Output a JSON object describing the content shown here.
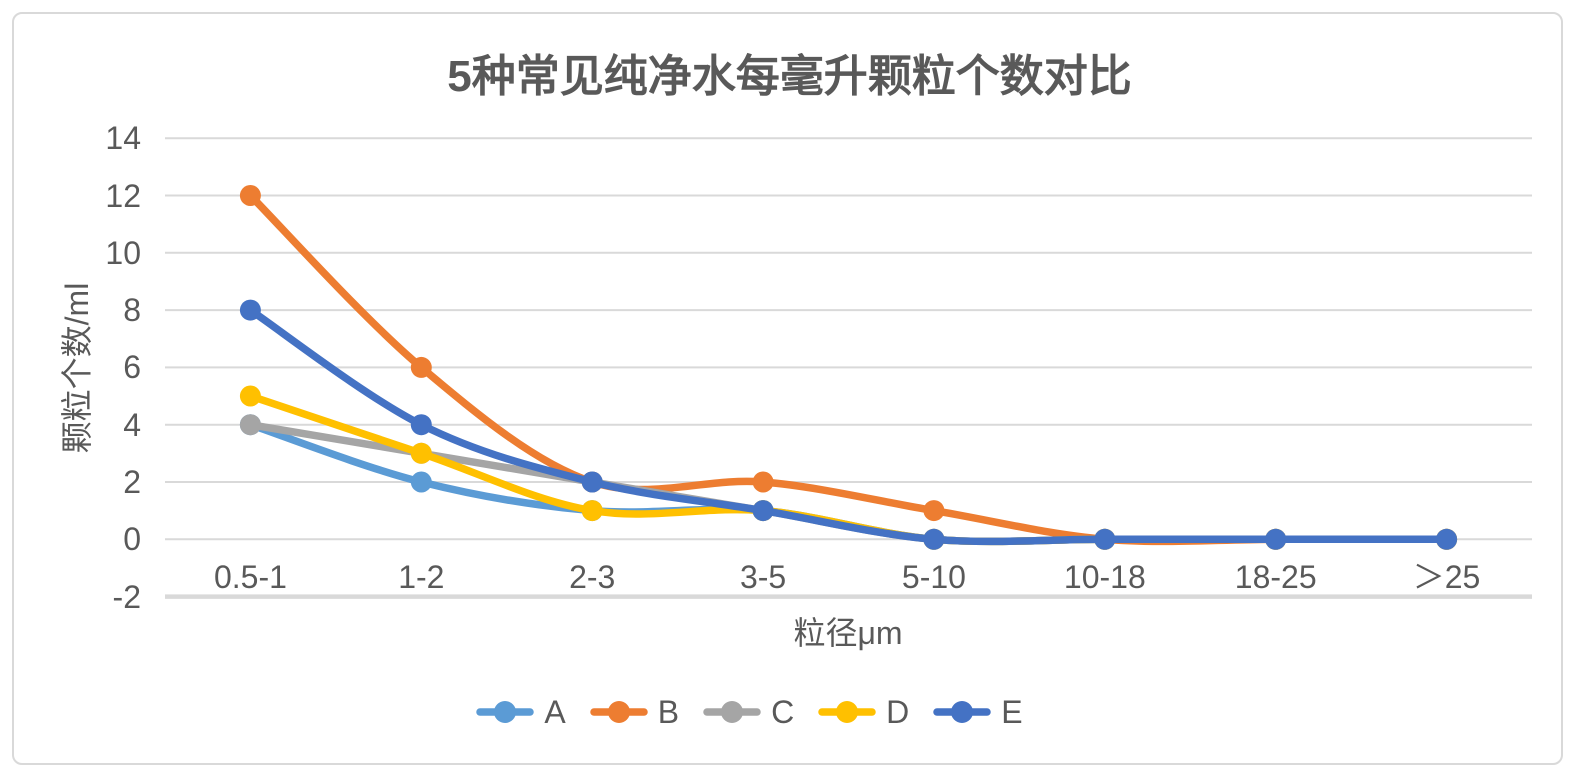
{
  "chart_data": {
    "type": "line",
    "title": "5种常见纯净水每毫升颗粒个数对比",
    "xlabel": "粒径μm",
    "ylabel": "颗粒个数/ml",
    "categories": [
      "0.5-1",
      "1-2",
      "2-3",
      "3-5",
      "5-10",
      "10-18",
      "18-25",
      "＞25"
    ],
    "series": [
      {
        "name": "A",
        "color": "#5B9BD5",
        "values": [
          4,
          2,
          1,
          1,
          0,
          0,
          0,
          0
        ]
      },
      {
        "name": "B",
        "color": "#ED7D31",
        "values": [
          12,
          6,
          2,
          2,
          1,
          0,
          0,
          0
        ]
      },
      {
        "name": "C",
        "color": "#A5A5A5",
        "values": [
          4,
          3,
          2,
          1,
          0,
          0,
          0,
          0
        ]
      },
      {
        "name": "D",
        "color": "#FFC000",
        "values": [
          5,
          3,
          1,
          1,
          0,
          0,
          0,
          0
        ]
      },
      {
        "name": "E",
        "color": "#4472C4",
        "values": [
          8,
          4,
          2,
          1,
          0,
          0,
          0,
          0
        ]
      }
    ],
    "ylim": [
      -2,
      14
    ],
    "yticks": [
      14,
      12,
      10,
      8,
      6,
      4,
      2,
      0,
      -2
    ],
    "grid": true,
    "smooth": true,
    "markers": true,
    "legend_position": "bottom",
    "text_color": "#595959",
    "gridline_color": "#D9D9D9"
  }
}
